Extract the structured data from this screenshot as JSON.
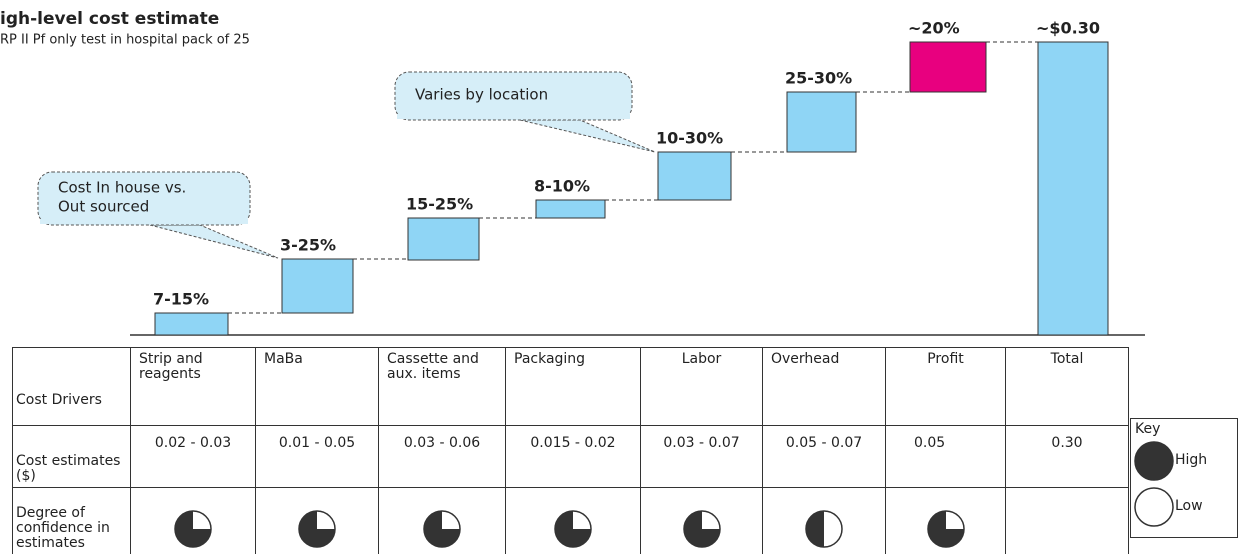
{
  "header": {
    "title": "igh-level cost estimate",
    "subtitle": "RP II Pf only test in hospital pack of 25"
  },
  "waterfall": {
    "labels": [
      "7-15%",
      "3-25%",
      "15-25%",
      "8-10%",
      "10-30%",
      "25-30%",
      "~20%",
      "~$0.30"
    ],
    "callouts": [
      {
        "lines": [
          "Cost In house vs.",
          "Out sourced"
        ]
      },
      {
        "lines": [
          "Varies by location"
        ]
      }
    ]
  },
  "table": {
    "row_headers": [
      "Cost Drivers",
      "Cost estimates ($)",
      "Degree of confidence in estimates"
    ],
    "columns": [
      "Strip and reagents",
      "MaBa",
      "Cassette and aux. items",
      "Packaging",
      "Labor",
      "Overhead",
      "Profit",
      "Total"
    ],
    "estimates": [
      "0.02 - 0.03",
      "0.01 - 0.05",
      "0.03 - 0.06",
      "0.015 - 0.02",
      "0.03 - 0.07",
      "0.05 - 0.07",
      "0.05",
      "0.30"
    ],
    "confidence": [
      75,
      75,
      75,
      75,
      75,
      50,
      75,
      null
    ]
  },
  "key": {
    "title": "Key",
    "items": [
      {
        "label": "High",
        "confidence": 100
      },
      {
        "label": "Low",
        "confidence": 0
      }
    ]
  }
}
